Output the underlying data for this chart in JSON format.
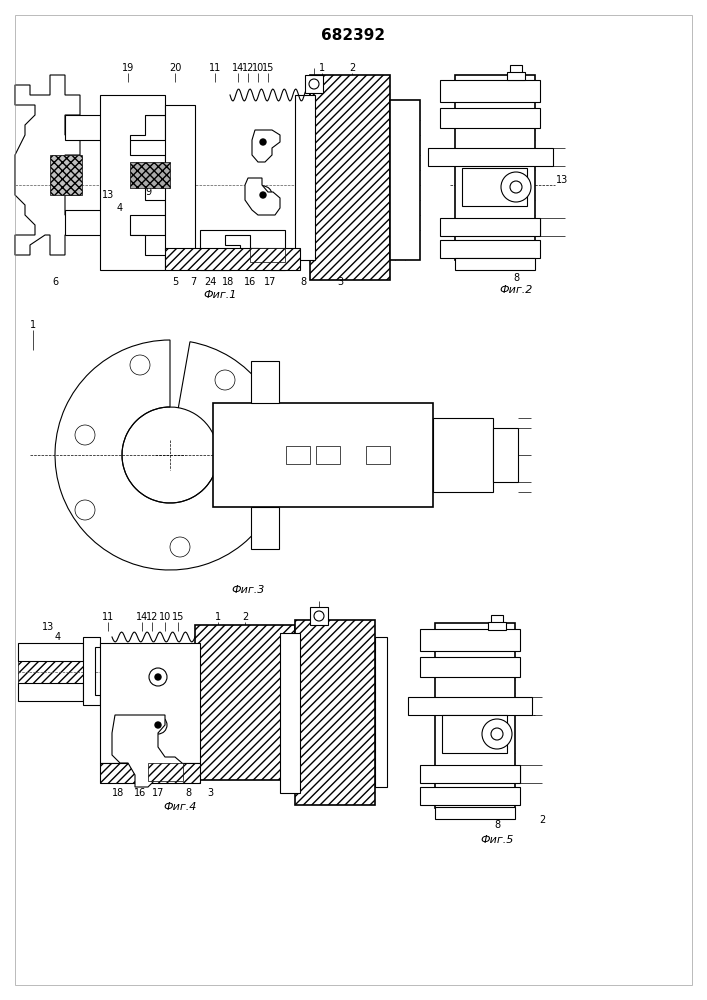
{
  "title": "682392",
  "fig1_caption": "Фиг.1",
  "fig2_caption": "Фиг.2",
  "fig3_caption": "Фиг.3",
  "fig4_caption": "Фиг.4",
  "fig5_caption": "Фиг.5",
  "line_color": "#000000",
  "bg_color": "#ffffff",
  "fig_width": 7.07,
  "fig_height": 10.0,
  "dpi": 100
}
